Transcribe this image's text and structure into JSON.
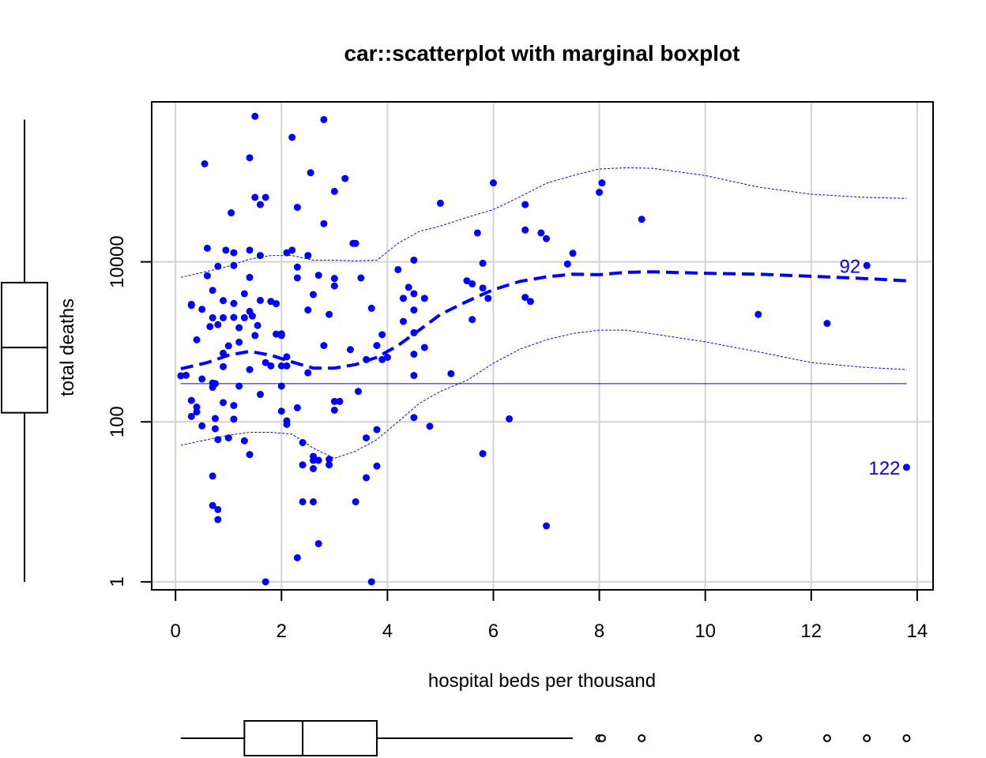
{
  "chart_data": {
    "type": "scatter",
    "title": "car::scatterplot with marginal boxplot",
    "xlabel": "hospital beds per thousand",
    "ylabel": "total deaths",
    "xlim": [
      -0.45,
      14.3
    ],
    "ylim_log10": [
      -0.1,
      6.0
    ],
    "y_scale": "log",
    "grid": true,
    "x_ticks": [
      0,
      2,
      4,
      6,
      8,
      10,
      12,
      14
    ],
    "x_tick_labels": [
      "0",
      "2",
      "4",
      "6",
      "8",
      "10",
      "12",
      "14"
    ],
    "y_ticks": [
      1,
      100,
      10000
    ],
    "y_tick_labels": [
      "1",
      "100",
      "10000"
    ],
    "colors": {
      "points": "#0000ff",
      "grid": "#d3d3d3",
      "axis": "#000000"
    },
    "points": [
      [
        0.1,
        376
      ],
      [
        0.2,
        382
      ],
      [
        0.3,
        185
      ],
      [
        0.3,
        117
      ],
      [
        0.3,
        2940
      ],
      [
        0.3,
        2850
      ],
      [
        0.4,
        1060
      ],
      [
        0.4,
        153
      ],
      [
        0.4,
        133
      ],
      [
        0.5,
        89
      ],
      [
        0.5,
        343
      ],
      [
        0.5,
        2550
      ],
      [
        0.55,
        168000
      ],
      [
        0.6,
        14800
      ],
      [
        0.6,
        6700
      ],
      [
        0.65,
        1550
      ],
      [
        0.7,
        4400
      ],
      [
        0.7,
        2000
      ],
      [
        0.7,
        270
      ],
      [
        0.7,
        305
      ],
      [
        0.7,
        21
      ],
      [
        0.7,
        9
      ],
      [
        0.75,
        110
      ],
      [
        0.75,
        82
      ],
      [
        0.75,
        300
      ],
      [
        0.8,
        1640
      ],
      [
        0.8,
        8800
      ],
      [
        0.8,
        60
      ],
      [
        0.8,
        8
      ],
      [
        0.8,
        6
      ],
      [
        0.9,
        490
      ],
      [
        0.9,
        720
      ],
      [
        0.9,
        3280
      ],
      [
        0.9,
        2000
      ],
      [
        0.9,
        174
      ],
      [
        0.95,
        14000
      ],
      [
        1.0,
        890
      ],
      [
        1.0,
        63
      ],
      [
        1.05,
        41000
      ],
      [
        1.1,
        3020
      ],
      [
        1.1,
        13000
      ],
      [
        1.1,
        9000
      ],
      [
        1.1,
        108
      ],
      [
        1.1,
        160
      ],
      [
        1.1,
        2020
      ],
      [
        1.2,
        1500
      ],
      [
        1.2,
        990
      ],
      [
        1.2,
        280
      ],
      [
        1.3,
        4000
      ],
      [
        1.3,
        2000
      ],
      [
        1.3,
        58
      ],
      [
        1.4,
        2400
      ],
      [
        1.4,
        6400
      ],
      [
        1.4,
        450
      ],
      [
        1.4,
        14000
      ],
      [
        1.4,
        39
      ],
      [
        1.4,
        200000
      ],
      [
        1.45,
        2100
      ],
      [
        1.5,
        660000
      ],
      [
        1.5,
        64000
      ],
      [
        1.5,
        1200
      ],
      [
        1.55,
        1600
      ],
      [
        1.6,
        3300
      ],
      [
        1.6,
        52000
      ],
      [
        1.6,
        12000
      ],
      [
        1.6,
        220
      ],
      [
        1.7,
        64000
      ],
      [
        1.7,
        1
      ],
      [
        1.7,
        550
      ],
      [
        1.8,
        3200
      ],
      [
        1.8,
        500
      ],
      [
        1.9,
        3000
      ],
      [
        1.9,
        1250
      ],
      [
        2.0,
        1260
      ],
      [
        2.0,
        1200
      ],
      [
        2.0,
        136
      ],
      [
        2.0,
        280
      ],
      [
        2.0,
        500
      ],
      [
        2.1,
        13000
      ],
      [
        2.1,
        500
      ],
      [
        2.1,
        650
      ],
      [
        2.1,
        103
      ],
      [
        2.1,
        93
      ],
      [
        2.2,
        360000
      ],
      [
        2.2,
        14000
      ],
      [
        2.3,
        150
      ],
      [
        2.3,
        8600
      ],
      [
        2.3,
        6300
      ],
      [
        2.3,
        48000
      ],
      [
        2.3,
        2
      ],
      [
        2.4,
        55
      ],
      [
        2.4,
        29
      ],
      [
        2.4,
        10
      ],
      [
        2.5,
        2500
      ],
      [
        2.5,
        410
      ],
      [
        2.5,
        12000
      ],
      [
        2.55,
        130000
      ],
      [
        2.6,
        3900
      ],
      [
        2.6,
        37
      ],
      [
        2.6,
        33
      ],
      [
        2.6,
        26
      ],
      [
        2.6,
        10
      ],
      [
        2.7,
        6800
      ],
      [
        2.7,
        33
      ],
      [
        2.7,
        3
      ],
      [
        2.8,
        900
      ],
      [
        2.8,
        30000
      ],
      [
        2.8,
        600000
      ],
      [
        2.9,
        2200
      ],
      [
        2.9,
        34
      ],
      [
        2.9,
        29
      ],
      [
        3.0,
        76000
      ],
      [
        3.0,
        5000
      ],
      [
        3.0,
        6200
      ],
      [
        3.0,
        140
      ],
      [
        3.0,
        180
      ],
      [
        3.1,
        180
      ],
      [
        3.2,
        110000
      ],
      [
        3.3,
        800
      ],
      [
        3.35,
        17000
      ],
      [
        3.4,
        17000
      ],
      [
        3.4,
        10
      ],
      [
        3.45,
        240
      ],
      [
        3.5,
        6300
      ],
      [
        3.6,
        20
      ],
      [
        3.6,
        63
      ],
      [
        3.6,
        600
      ],
      [
        3.7,
        2630
      ],
      [
        3.7,
        1
      ],
      [
        3.8,
        80
      ],
      [
        3.8,
        28
      ],
      [
        3.8,
        900
      ],
      [
        3.9,
        1230
      ],
      [
        3.9,
        600
      ],
      [
        4.0,
        640
      ],
      [
        4.3,
        3500
      ],
      [
        4.3,
        1800
      ],
      [
        4.2,
        8000
      ],
      [
        4.3,
        3500
      ],
      [
        4.4,
        4800
      ],
      [
        4.5,
        380
      ],
      [
        4.5,
        1300
      ],
      [
        4.5,
        4000
      ],
      [
        4.5,
        2500
      ],
      [
        4.5,
        10500
      ],
      [
        4.5,
        113
      ],
      [
        4.5,
        700
      ],
      [
        4.7,
        3500
      ],
      [
        4.7,
        850
      ],
      [
        4.8,
        88
      ],
      [
        5.0,
        54000
      ],
      [
        5.2,
        400
      ],
      [
        5.5,
        5800
      ],
      [
        5.6,
        1900
      ],
      [
        5.6,
        5300
      ],
      [
        5.7,
        23000
      ],
      [
        5.8,
        9600
      ],
      [
        5.8,
        4700
      ],
      [
        5.8,
        40
      ],
      [
        5.9,
        3500
      ],
      [
        6.0,
        97000
      ],
      [
        6.3,
        109
      ],
      [
        6.6,
        3600
      ],
      [
        6.6,
        52000
      ],
      [
        6.6,
        25000
      ],
      [
        6.7,
        3200
      ],
      [
        6.9,
        23000
      ],
      [
        7.0,
        5
      ],
      [
        7.0,
        19500
      ],
      [
        7.4,
        9400
      ],
      [
        7.5,
        12800
      ],
      [
        8.0,
        74000
      ],
      [
        8.05,
        97000
      ],
      [
        8.8,
        34000
      ],
      [
        11.0,
        2200
      ],
      [
        12.3,
        1700
      ],
      [
        13.05,
        9000
      ],
      [
        13.8,
        27
      ]
    ],
    "labeled_points": [
      {
        "label": "92",
        "x": 13.05,
        "y": 9000
      },
      {
        "label": "122",
        "x": 13.8,
        "y": 27
      }
    ],
    "smoother": {
      "x": [
        0.1,
        0.6,
        1.0,
        1.4,
        1.8,
        2.2,
        2.6,
        3.0,
        3.4,
        3.8,
        4.2,
        4.6,
        5.0,
        5.5,
        6.0,
        6.5,
        7.0,
        7.5,
        8.0,
        8.5,
        9.0,
        10.0,
        11.0,
        12.0,
        13.0,
        13.8
      ],
      "center": [
        460,
        550,
        680,
        760,
        680,
        560,
        470,
        470,
        520,
        640,
        900,
        1400,
        2200,
        3200,
        4500,
        5700,
        6500,
        7000,
        6900,
        7400,
        7500,
        7200,
        7000,
        6600,
        6200,
        5800
      ],
      "upper": [
        6400,
        7600,
        8800,
        10800,
        12000,
        12000,
        10500,
        10500,
        10300,
        10500,
        17000,
        24000,
        28000,
        36000,
        45000,
        65000,
        96000,
        120000,
        145000,
        150000,
        148000,
        120000,
        86000,
        70000,
        64000,
        62000
      ],
      "lower": [
        51,
        60,
        68,
        74,
        74,
        70,
        47,
        35,
        43,
        60,
        100,
        170,
        240,
        330,
        540,
        810,
        1060,
        1270,
        1400,
        1400,
        1260,
        1000,
        750,
        550,
        480,
        450
      ]
    },
    "fit_line": {
      "x": [
        0.1,
        13.8
      ],
      "y": [
        300,
        300
      ]
    },
    "x_boxplot": {
      "whisker_low": 0.1,
      "q1": 1.3,
      "median": 2.4,
      "q3": 3.8,
      "whisker_high": 7.5,
      "outliers": [
        8.0,
        8.05,
        8.8,
        11.0,
        12.3,
        13.05,
        13.8
      ]
    },
    "y_boxplot": {
      "whisker_low": 1,
      "q1": 130,
      "median": 850,
      "q3": 5500,
      "whisker_high": 600000
    }
  }
}
